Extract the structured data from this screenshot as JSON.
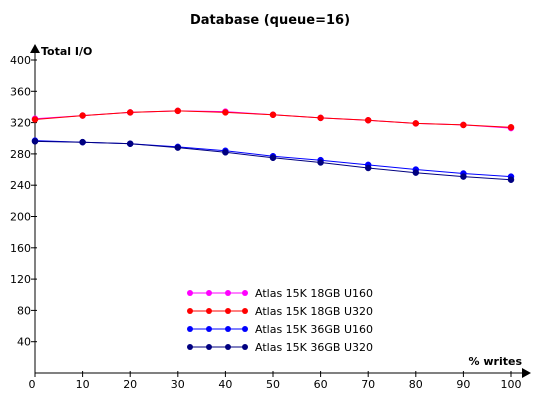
{
  "chart_data": {
    "type": "line",
    "title": "Database (queue=16)",
    "ylabel": "Total I/O",
    "xlabel": "% writes",
    "x": [
      0,
      10,
      20,
      30,
      40,
      50,
      60,
      70,
      80,
      90,
      100
    ],
    "xlim": [
      0,
      100
    ],
    "ylim": [
      0,
      400
    ],
    "yticks": [
      40,
      80,
      120,
      160,
      200,
      240,
      280,
      320,
      360,
      400
    ],
    "xticks": [
      0,
      10,
      20,
      30,
      40,
      50,
      60,
      70,
      80,
      90,
      100
    ],
    "grid": false,
    "legend_position": "bottom-center",
    "series": [
      {
        "name": "Atlas 15K 18GB U160",
        "color": "#ff00ff",
        "values": [
          325,
          329,
          333,
          335,
          334,
          330,
          326,
          323,
          319,
          317,
          313
        ]
      },
      {
        "name": "Atlas 15K 18GB U320",
        "color": "#ff0000",
        "values": [
          324,
          329,
          333,
          335,
          333,
          330,
          326,
          323,
          319,
          317,
          314
        ]
      },
      {
        "name": "Atlas 15K 36GB U160",
        "color": "#0000ff",
        "values": [
          297,
          295,
          293,
          289,
          284,
          277,
          272,
          266,
          260,
          255,
          251
        ]
      },
      {
        "name": "Atlas 15K 36GB U320",
        "color": "#000080",
        "values": [
          296,
          295,
          293,
          288,
          282,
          275,
          269,
          262,
          256,
          251,
          247
        ]
      }
    ]
  }
}
